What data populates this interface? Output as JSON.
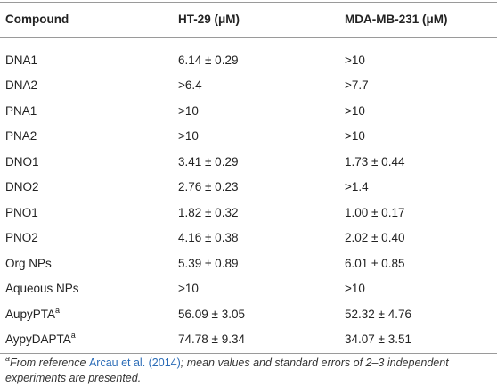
{
  "table": {
    "header": [
      "Compound",
      "HT-29 (μM)",
      "MDA-MB-231 (μM)"
    ],
    "rows": [
      [
        "DNA1",
        "6.14 ± 0.29",
        ">10"
      ],
      [
        "DNA2",
        ">6.4",
        ">7.7"
      ],
      [
        "PNA1",
        ">10",
        ">10"
      ],
      [
        "PNA2",
        ">10",
        ">10"
      ],
      [
        "DNO1",
        "3.41 ± 0.29",
        "1.73 ± 0.44"
      ],
      [
        "DNO2",
        "2.76 ± 0.23",
        ">1.4"
      ],
      [
        "PNO1",
        "1.82 ± 0.32",
        "1.00 ± 0.17"
      ],
      [
        "PNO2",
        "4.16 ± 0.38",
        "2.02 ± 0.40"
      ],
      [
        "Org NPs",
        "5.39 ± 0.89",
        "6.01 ± 0.85"
      ],
      [
        "Aqueous NPs",
        ">10",
        ">10"
      ],
      [
        {
          "text": "AupyPTA",
          "sup": "a"
        },
        "56.09 ± 3.05",
        "52.32 ± 4.76"
      ],
      [
        {
          "text": "AypyDAPTA",
          "sup": "a"
        },
        "74.78 ± 9.34",
        "34.07 ± 3.51"
      ]
    ]
  },
  "footnote": {
    "mark": "a",
    "before": "From reference ",
    "link": "Arcau et al. (2014)",
    "after": "; mean values and standard errors of 2–3 independent experiments are presented."
  }
}
